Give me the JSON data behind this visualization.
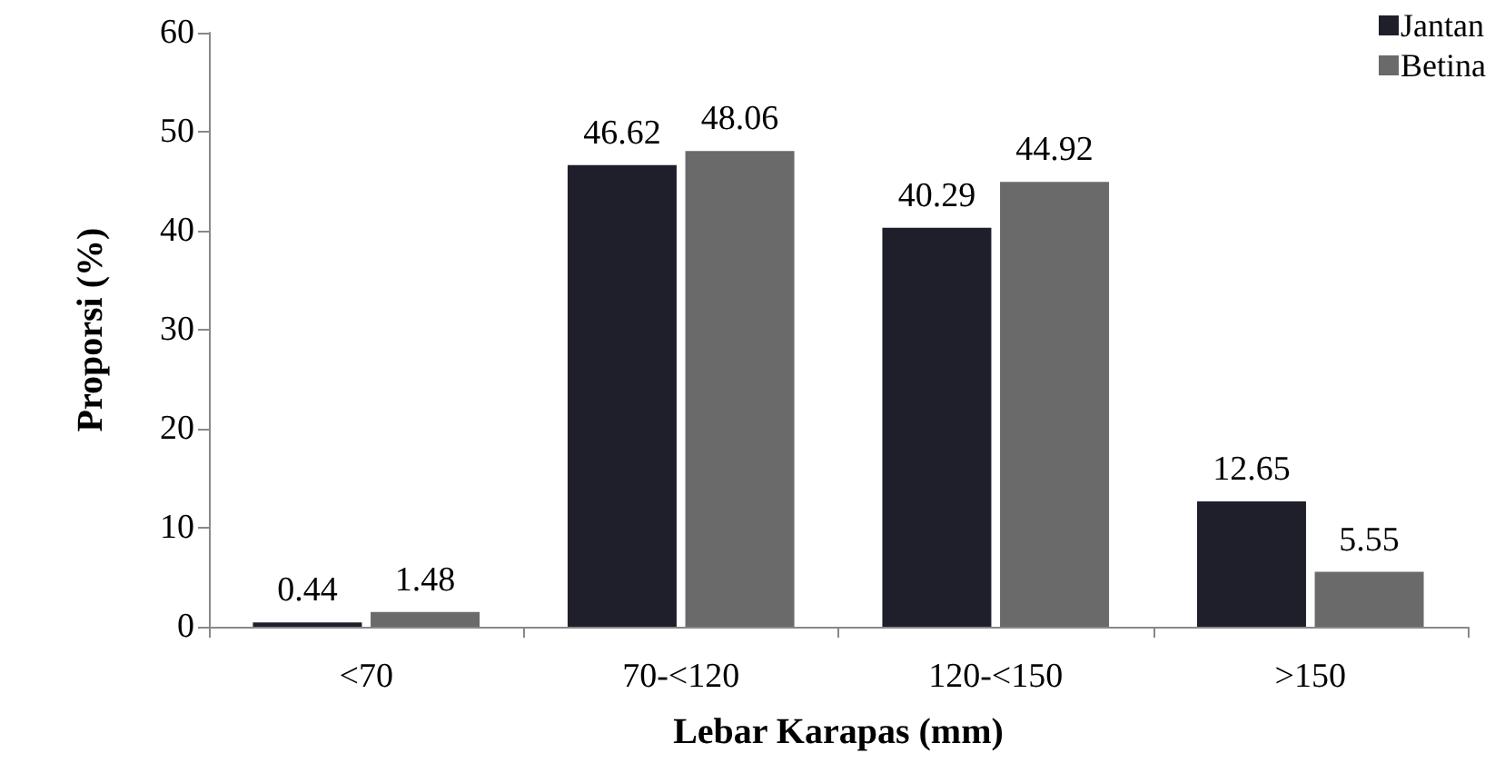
{
  "chart_data": {
    "type": "bar",
    "xlabel": "Lebar Karapas (mm)",
    "ylabel": "Proporsi (%)",
    "categories": [
      "<70",
      "70-<120",
      "120-<150",
      ">150"
    ],
    "series": [
      {
        "name": "Jantan",
        "color": "#1f1f2b",
        "values": [
          0.44,
          46.62,
          40.29,
          12.65
        ]
      },
      {
        "name": "Betina",
        "color": "#6a6a6a",
        "values": [
          1.48,
          48.06,
          44.92,
          5.55
        ]
      }
    ],
    "ylim": [
      0,
      60
    ],
    "yticks": [
      0,
      10,
      20,
      30,
      40,
      50,
      60
    ],
    "grid": false,
    "legend": "top right",
    "data_labels": true
  }
}
